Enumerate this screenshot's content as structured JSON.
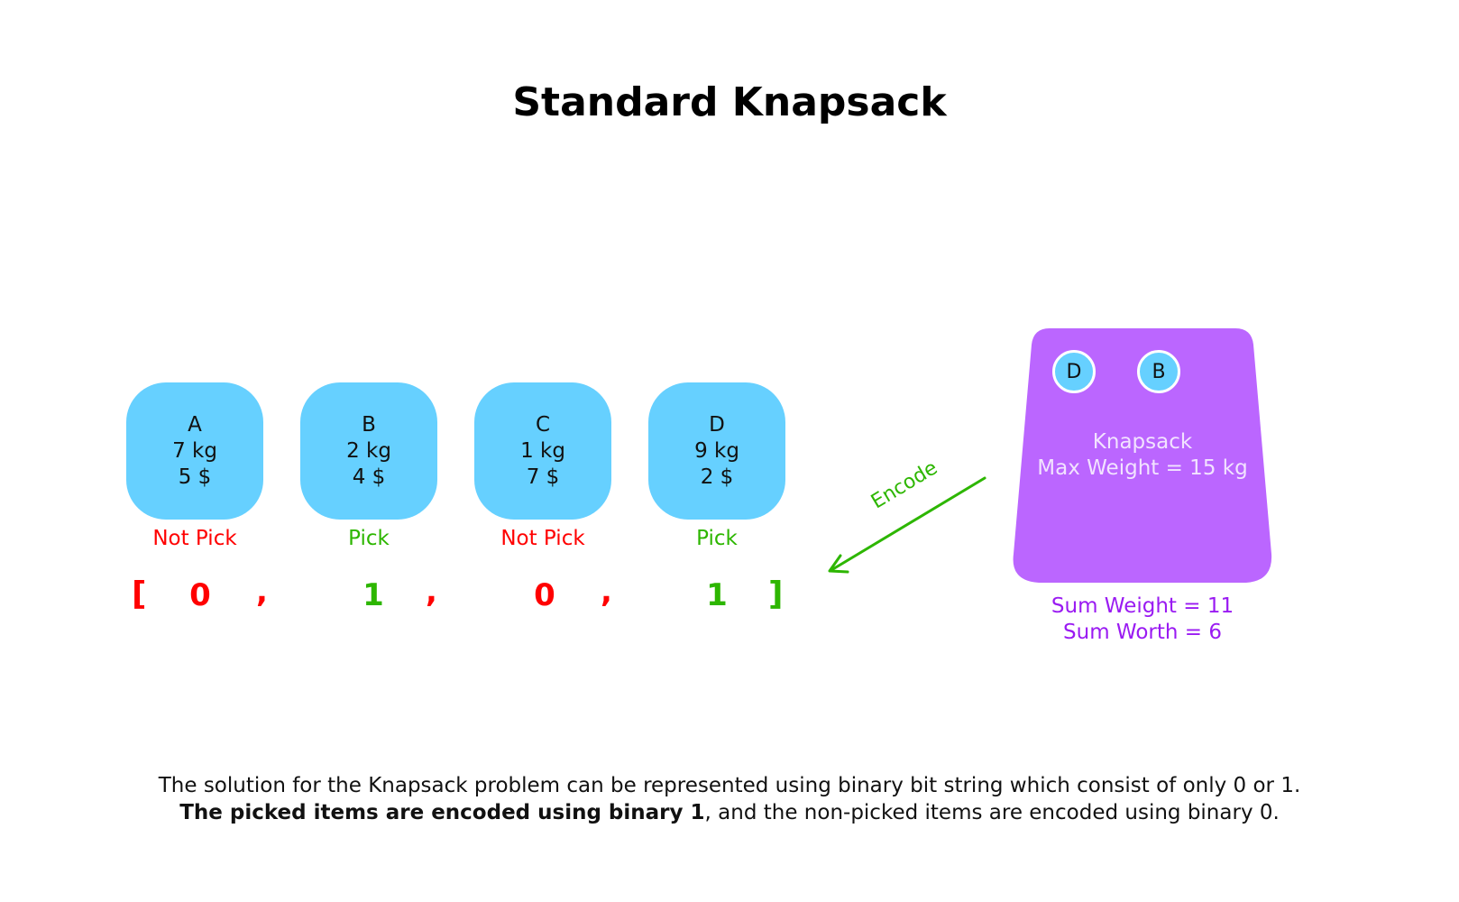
{
  "title": "Standard Knapsack",
  "colors": {
    "item": "#66D0FF",
    "not_pick": "#FF0000",
    "pick": "#2DB600",
    "knapsack": "#BB66FF",
    "sum_text": "#9A1BF2"
  },
  "items": [
    {
      "name": "A",
      "weight": "7 kg",
      "worth": "5 $",
      "status": "Not Pick",
      "bit": "0"
    },
    {
      "name": "B",
      "weight": "2 kg",
      "worth": "4 $",
      "status": "Pick",
      "bit": "1"
    },
    {
      "name": "C",
      "weight": "1 kg",
      "worth": "7 $",
      "status": "Not Pick",
      "bit": "0"
    },
    {
      "name": "D",
      "weight": "9 kg",
      "worth": "2 $",
      "status": "Pick",
      "bit": "1"
    }
  ],
  "encoding": {
    "open": "[",
    "close": "]",
    "separator": ","
  },
  "arrow_label": "Encode",
  "knapsack": {
    "contents": [
      "D",
      "B"
    ],
    "label": "Knapsack",
    "max_weight": "Max Weight = 15 kg",
    "sum_weight": "Sum Weight = 11",
    "sum_worth": "Sum Worth = 6"
  },
  "caption": {
    "line1": "The solution for the Knapsack problem can be represented using binary bit string which consist of only 0 or 1.",
    "line2_bold": "The picked items are encoded using binary 1",
    "line2_rest": ", and the non-picked items are encoded using binary 0."
  }
}
